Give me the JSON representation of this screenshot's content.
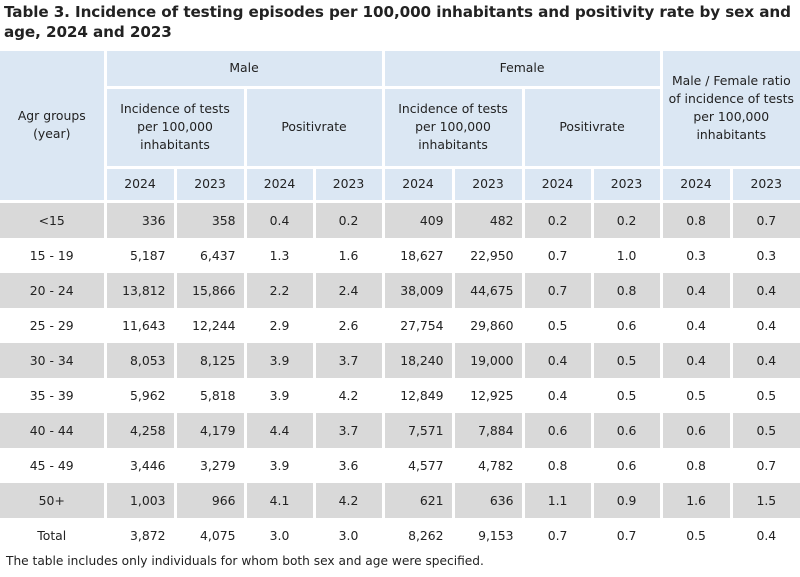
{
  "title": "Table 3. Incidence of testing episodes per 100,000 inhabitants and positivity rate by sex and age, 2024 and 2023",
  "header": {
    "age_col": "Agr groups (year)",
    "male": "Male",
    "female": "Female",
    "ratio": "Male / Female ratio of incidence of tests per 100,000 inhabitants",
    "incidence": "Incidence of tests per 100,000 inhabitants",
    "positivity": "Positivrate",
    "years": [
      "2024",
      "2023",
      "2024",
      "2023",
      "2024",
      "2023",
      "2024",
      "2023",
      "2024",
      "2023"
    ]
  },
  "rows": [
    {
      "age": "<15",
      "m_inc_2024": "336",
      "m_inc_2023": "358",
      "m_pos_2024": "0.4",
      "m_pos_2023": "0.2",
      "f_inc_2024": "409",
      "f_inc_2023": "482",
      "f_pos_2024": "0.2",
      "f_pos_2023": "0.2",
      "r_2024": "0.8",
      "r_2023": "0.7"
    },
    {
      "age": "15 - 19",
      "m_inc_2024": "5,187",
      "m_inc_2023": "6,437",
      "m_pos_2024": "1.3",
      "m_pos_2023": "1.6",
      "f_inc_2024": "18,627",
      "f_inc_2023": "22,950",
      "f_pos_2024": "0.7",
      "f_pos_2023": "1.0",
      "r_2024": "0.3",
      "r_2023": "0.3"
    },
    {
      "age": "20 - 24",
      "m_inc_2024": "13,812",
      "m_inc_2023": "15,866",
      "m_pos_2024": "2.2",
      "m_pos_2023": "2.4",
      "f_inc_2024": "38,009",
      "f_inc_2023": "44,675",
      "f_pos_2024": "0.7",
      "f_pos_2023": "0.8",
      "r_2024": "0.4",
      "r_2023": "0.4"
    },
    {
      "age": "25 - 29",
      "m_inc_2024": "11,643",
      "m_inc_2023": "12,244",
      "m_pos_2024": "2.9",
      "m_pos_2023": "2.6",
      "f_inc_2024": "27,754",
      "f_inc_2023": "29,860",
      "f_pos_2024": "0.5",
      "f_pos_2023": "0.6",
      "r_2024": "0.4",
      "r_2023": "0.4"
    },
    {
      "age": "30 - 34",
      "m_inc_2024": "8,053",
      "m_inc_2023": "8,125",
      "m_pos_2024": "3.9",
      "m_pos_2023": "3.7",
      "f_inc_2024": "18,240",
      "f_inc_2023": "19,000",
      "f_pos_2024": "0.4",
      "f_pos_2023": "0.5",
      "r_2024": "0.4",
      "r_2023": "0.4"
    },
    {
      "age": "35 - 39",
      "m_inc_2024": "5,962",
      "m_inc_2023": "5,818",
      "m_pos_2024": "3.9",
      "m_pos_2023": "4.2",
      "f_inc_2024": "12,849",
      "f_inc_2023": "12,925",
      "f_pos_2024": "0.4",
      "f_pos_2023": "0.5",
      "r_2024": "0.5",
      "r_2023": "0.5"
    },
    {
      "age": "40 - 44",
      "m_inc_2024": "4,258",
      "m_inc_2023": "4,179",
      "m_pos_2024": "4.4",
      "m_pos_2023": "3.7",
      "f_inc_2024": "7,571",
      "f_inc_2023": "7,884",
      "f_pos_2024": "0.6",
      "f_pos_2023": "0.6",
      "r_2024": "0.6",
      "r_2023": "0.5"
    },
    {
      "age": "45 - 49",
      "m_inc_2024": "3,446",
      "m_inc_2023": "3,279",
      "m_pos_2024": "3.9",
      "m_pos_2023": "3.6",
      "f_inc_2024": "4,577",
      "f_inc_2023": "4,782",
      "f_pos_2024": "0.8",
      "f_pos_2023": "0.6",
      "r_2024": "0.8",
      "r_2023": "0.7"
    },
    {
      "age": "50+",
      "m_inc_2024": "1,003",
      "m_inc_2023": "966",
      "m_pos_2024": "4.1",
      "m_pos_2023": "4.2",
      "f_inc_2024": "621",
      "f_inc_2023": "636",
      "f_pos_2024": "1.1",
      "f_pos_2023": "0.9",
      "r_2024": "1.6",
      "r_2023": "1.5"
    },
    {
      "age": "Total",
      "m_inc_2024": "3,872",
      "m_inc_2023": "4,075",
      "m_pos_2024": "3.0",
      "m_pos_2023": "3.0",
      "f_inc_2024": "8,262",
      "f_inc_2023": "9,153",
      "f_pos_2024": "0.7",
      "f_pos_2023": "0.7",
      "r_2024": "0.5",
      "r_2023": "0.4"
    }
  ],
  "footnote": "The table includes only individuals for whom both sex and age were specified.",
  "colors": {
    "header_bg": "#dbe7f3",
    "shade_bg": "#d9d9d9",
    "text": "#222222"
  }
}
